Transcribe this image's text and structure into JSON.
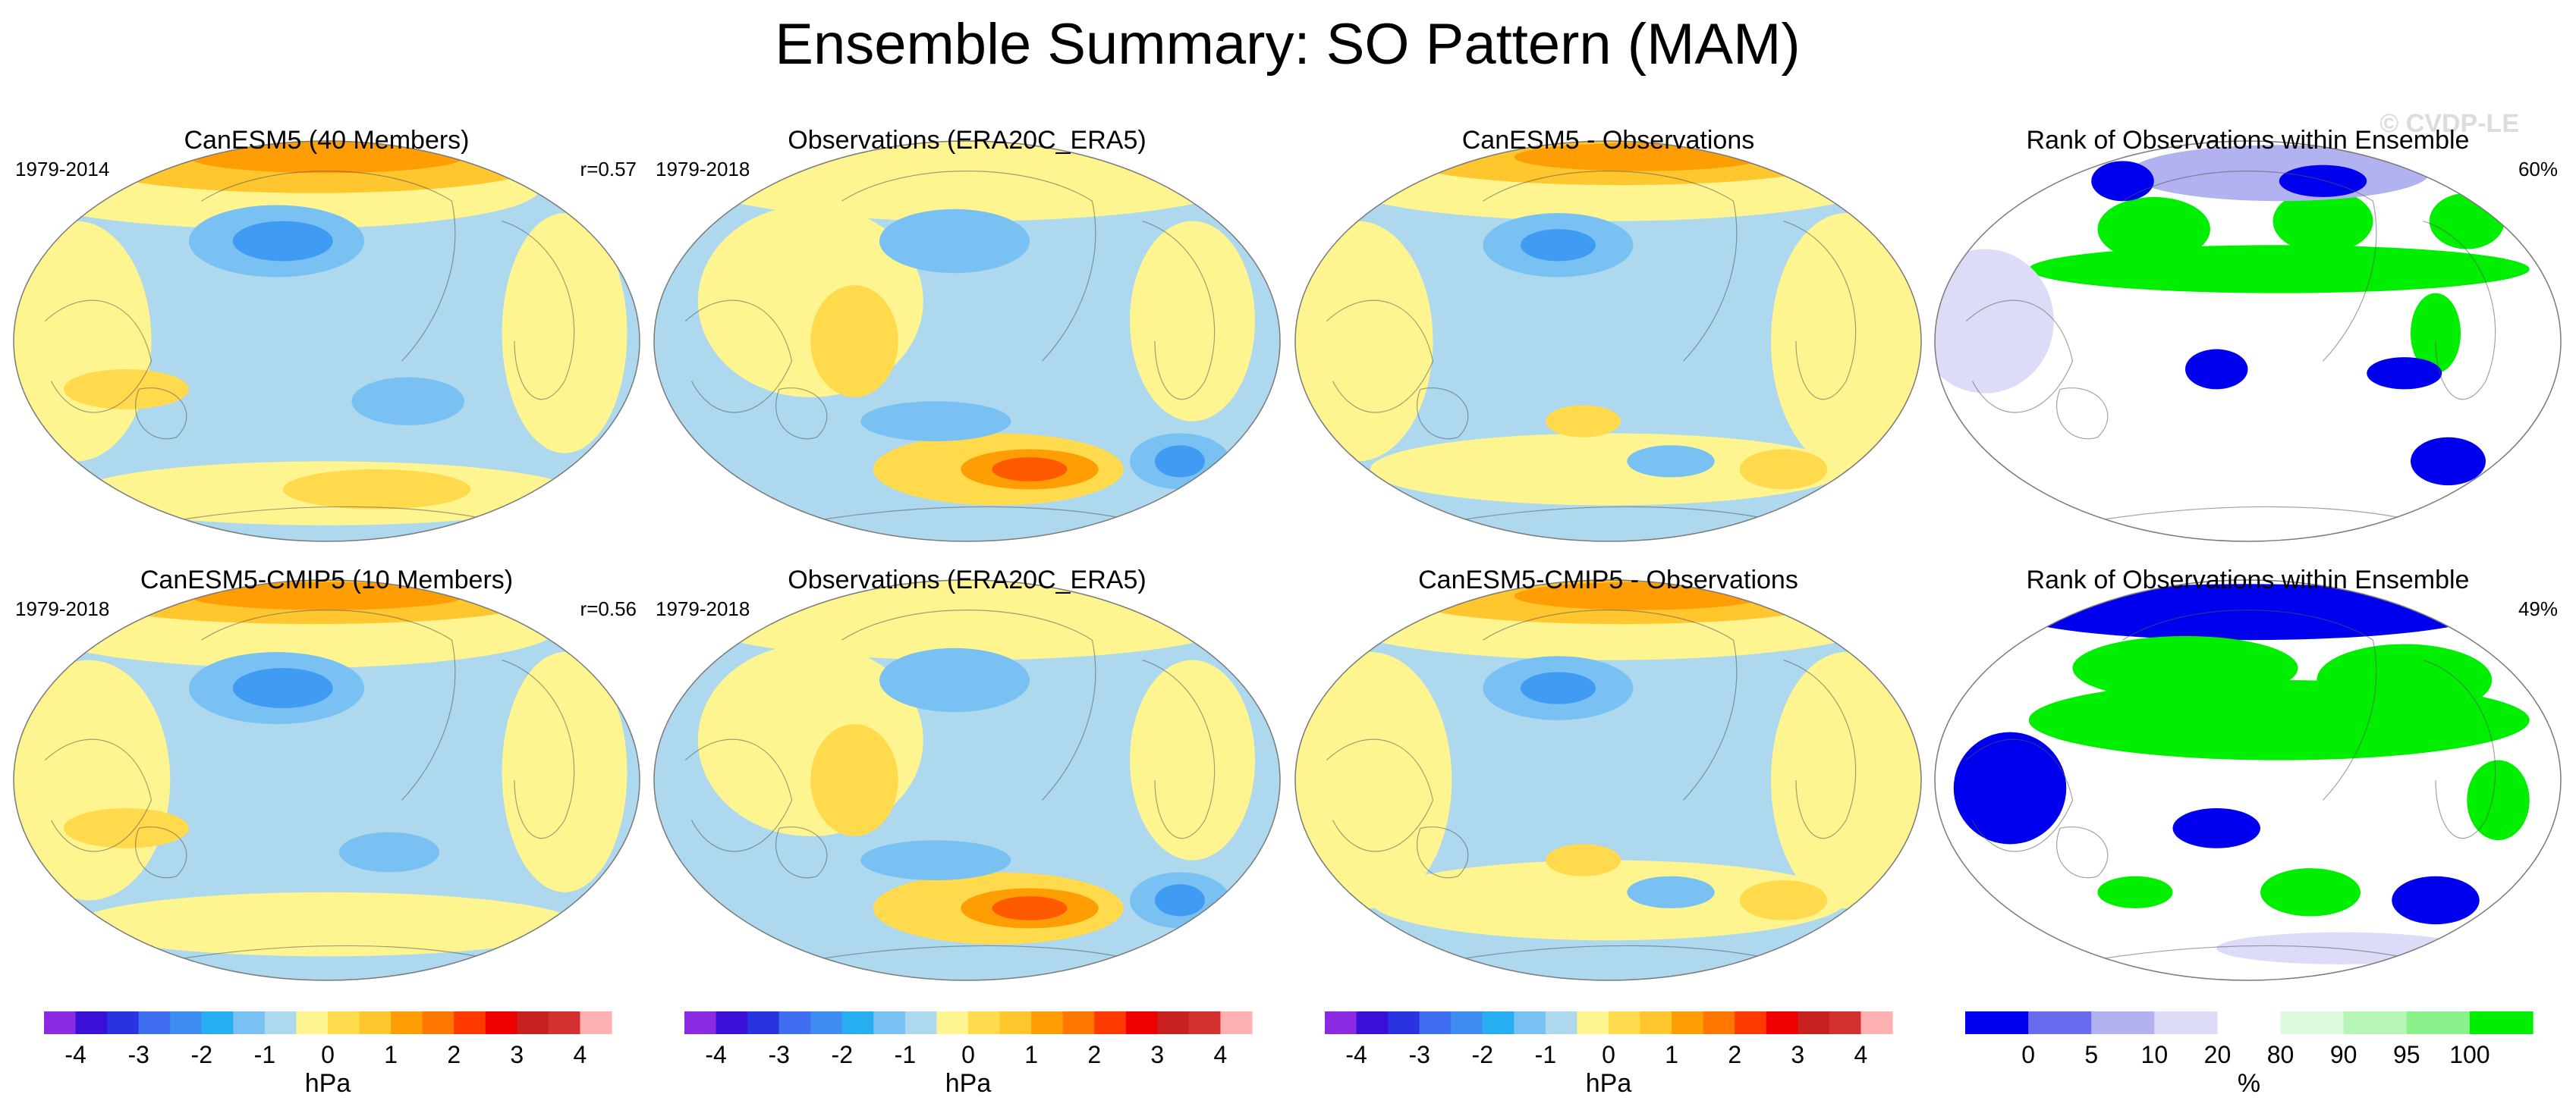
{
  "page": {
    "title": "Ensemble Summary: SO Pattern (MAM)",
    "watermark": "© CVDP-LE"
  },
  "chart_data": {
    "type": "heatmap",
    "projection": "Robinson world map centered on Pacific, continent outlines",
    "panels": [
      {
        "row": 0,
        "col": 0,
        "title": "CanESM5 (40 Members)",
        "left_label": "1979-2014",
        "right_label": "r=0.57",
        "kind": "anomaly",
        "fill": "#add8ee",
        "patches": [
          {
            "x": 0.42,
            "y": 0.12,
            "rx": 0.42,
            "ry": 0.1,
            "c": "#fff590"
          },
          {
            "x": 0.48,
            "y": 0.06,
            "rx": 0.36,
            "ry": 0.07,
            "c": "#ffc62e"
          },
          {
            "x": 0.5,
            "y": 0.04,
            "rx": 0.22,
            "ry": 0.04,
            "c": "#ff9d05"
          },
          {
            "x": 0.1,
            "y": 0.5,
            "rx": 0.12,
            "ry": 0.3,
            "c": "#fff590"
          },
          {
            "x": 0.88,
            "y": 0.48,
            "rx": 0.1,
            "ry": 0.3,
            "c": "#fff590"
          },
          {
            "x": 0.5,
            "y": 0.88,
            "rx": 0.4,
            "ry": 0.08,
            "c": "#fff590"
          },
          {
            "x": 0.58,
            "y": 0.87,
            "rx": 0.15,
            "ry": 0.05,
            "c": "#ffda4d"
          },
          {
            "x": 0.18,
            "y": 0.62,
            "rx": 0.1,
            "ry": 0.05,
            "c": "#ffda4d"
          },
          {
            "x": 0.42,
            "y": 0.25,
            "rx": 0.14,
            "ry": 0.09,
            "c": "#78c1f2"
          },
          {
            "x": 0.43,
            "y": 0.25,
            "rx": 0.08,
            "ry": 0.05,
            "c": "#3f9cf2"
          },
          {
            "x": 0.63,
            "y": 0.65,
            "rx": 0.09,
            "ry": 0.06,
            "c": "#78c1f2"
          }
        ]
      },
      {
        "row": 0,
        "col": 1,
        "title": "Observations (ERA20C_ERA5)",
        "left_label": "1979-2018",
        "right_label": "",
        "kind": "anomaly",
        "fill": "#add8ee",
        "patches": [
          {
            "x": 0.5,
            "y": 0.1,
            "rx": 0.44,
            "ry": 0.1,
            "c": "#fff590"
          },
          {
            "x": 0.25,
            "y": 0.4,
            "rx": 0.18,
            "ry": 0.24,
            "c": "#fff590"
          },
          {
            "x": 0.32,
            "y": 0.5,
            "rx": 0.07,
            "ry": 0.14,
            "c": "#ffda4d"
          },
          {
            "x": 0.86,
            "y": 0.45,
            "rx": 0.1,
            "ry": 0.25,
            "c": "#fff590"
          },
          {
            "x": 0.55,
            "y": 0.82,
            "rx": 0.2,
            "ry": 0.09,
            "c": "#ffda4d"
          },
          {
            "x": 0.6,
            "y": 0.82,
            "rx": 0.11,
            "ry": 0.05,
            "c": "#ff9d05"
          },
          {
            "x": 0.6,
            "y": 0.82,
            "rx": 0.06,
            "ry": 0.03,
            "c": "#ff5a00"
          },
          {
            "x": 0.48,
            "y": 0.25,
            "rx": 0.12,
            "ry": 0.08,
            "c": "#78c1f2"
          },
          {
            "x": 0.84,
            "y": 0.8,
            "rx": 0.08,
            "ry": 0.07,
            "c": "#78c1f2"
          },
          {
            "x": 0.84,
            "y": 0.8,
            "rx": 0.04,
            "ry": 0.04,
            "c": "#3f9cf2"
          },
          {
            "x": 0.45,
            "y": 0.7,
            "rx": 0.12,
            "ry": 0.05,
            "c": "#78c1f2"
          }
        ]
      },
      {
        "row": 0,
        "col": 2,
        "title": "CanESM5 - Observations",
        "left_label": "",
        "right_label": "",
        "kind": "anomaly",
        "fill": "#add8ee",
        "patches": [
          {
            "x": 0.5,
            "y": 0.1,
            "rx": 0.44,
            "ry": 0.1,
            "c": "#fff590"
          },
          {
            "x": 0.52,
            "y": 0.05,
            "rx": 0.34,
            "ry": 0.06,
            "c": "#ffc62e"
          },
          {
            "x": 0.55,
            "y": 0.04,
            "rx": 0.2,
            "ry": 0.035,
            "c": "#ff9d05"
          },
          {
            "x": 0.1,
            "y": 0.5,
            "rx": 0.12,
            "ry": 0.3,
            "c": "#fff590"
          },
          {
            "x": 0.88,
            "y": 0.5,
            "rx": 0.12,
            "ry": 0.32,
            "c": "#fff590"
          },
          {
            "x": 0.5,
            "y": 0.82,
            "rx": 0.38,
            "ry": 0.09,
            "c": "#fff590"
          },
          {
            "x": 0.46,
            "y": 0.7,
            "rx": 0.06,
            "ry": 0.04,
            "c": "#ffda4d"
          },
          {
            "x": 0.78,
            "y": 0.82,
            "rx": 0.07,
            "ry": 0.05,
            "c": "#ffda4d"
          },
          {
            "x": 0.42,
            "y": 0.26,
            "rx": 0.12,
            "ry": 0.08,
            "c": "#78c1f2"
          },
          {
            "x": 0.42,
            "y": 0.26,
            "rx": 0.06,
            "ry": 0.04,
            "c": "#3f9cf2"
          },
          {
            "x": 0.6,
            "y": 0.8,
            "rx": 0.07,
            "ry": 0.04,
            "c": "#78c1f2"
          }
        ]
      },
      {
        "row": 0,
        "col": 3,
        "title": "Rank of Observations within Ensemble",
        "left_label": "",
        "right_label": "60%",
        "kind": "rank",
        "fill": "#ffffff",
        "patches": [
          {
            "x": 0.55,
            "y": 0.32,
            "rx": 0.4,
            "ry": 0.06,
            "c": "#00ee00"
          },
          {
            "x": 0.35,
            "y": 0.22,
            "rx": 0.09,
            "ry": 0.08,
            "c": "#00ee00"
          },
          {
            "x": 0.62,
            "y": 0.2,
            "rx": 0.08,
            "ry": 0.08,
            "c": "#00ee00"
          },
          {
            "x": 0.85,
            "y": 0.2,
            "rx": 0.06,
            "ry": 0.07,
            "c": "#00ee00"
          },
          {
            "x": 0.8,
            "y": 0.48,
            "rx": 0.04,
            "ry": 0.1,
            "c": "#00ee00"
          },
          {
            "x": 0.08,
            "y": 0.45,
            "rx": 0.07,
            "ry": 0.14,
            "c": "#0000ee"
          },
          {
            "x": 0.08,
            "y": 0.45,
            "rx": 0.11,
            "ry": 0.18,
            "c": "#dddcf8"
          },
          {
            "x": 0.45,
            "y": 0.57,
            "rx": 0.05,
            "ry": 0.05,
            "c": "#0000ee"
          },
          {
            "x": 0.82,
            "y": 0.8,
            "rx": 0.06,
            "ry": 0.06,
            "c": "#0000ee"
          },
          {
            "x": 0.55,
            "y": 0.08,
            "rx": 0.24,
            "ry": 0.07,
            "c": "#b3b2f0"
          },
          {
            "x": 0.62,
            "y": 0.1,
            "rx": 0.07,
            "ry": 0.04,
            "c": "#0000ee"
          },
          {
            "x": 0.3,
            "y": 0.1,
            "rx": 0.05,
            "ry": 0.05,
            "c": "#0000ee"
          },
          {
            "x": 0.75,
            "y": 0.58,
            "rx": 0.06,
            "ry": 0.04,
            "c": "#0000ee"
          }
        ]
      },
      {
        "row": 1,
        "col": 0,
        "title": "CanESM5-CMIP5 (10 Members)",
        "left_label": "1979-2018",
        "right_label": "r=0.56",
        "kind": "anomaly",
        "fill": "#add8ee",
        "patches": [
          {
            "x": 0.45,
            "y": 0.12,
            "rx": 0.42,
            "ry": 0.1,
            "c": "#fff590"
          },
          {
            "x": 0.48,
            "y": 0.05,
            "rx": 0.36,
            "ry": 0.06,
            "c": "#ffc62e"
          },
          {
            "x": 0.5,
            "y": 0.04,
            "rx": 0.22,
            "ry": 0.035,
            "c": "#ff9d05"
          },
          {
            "x": 0.12,
            "y": 0.5,
            "rx": 0.13,
            "ry": 0.3,
            "c": "#fff590"
          },
          {
            "x": 0.88,
            "y": 0.48,
            "rx": 0.1,
            "ry": 0.3,
            "c": "#fff590"
          },
          {
            "x": 0.5,
            "y": 0.86,
            "rx": 0.4,
            "ry": 0.08,
            "c": "#fff590"
          },
          {
            "x": 0.18,
            "y": 0.62,
            "rx": 0.1,
            "ry": 0.05,
            "c": "#ffda4d"
          },
          {
            "x": 0.42,
            "y": 0.27,
            "rx": 0.14,
            "ry": 0.09,
            "c": "#78c1f2"
          },
          {
            "x": 0.43,
            "y": 0.27,
            "rx": 0.08,
            "ry": 0.05,
            "c": "#3f9cf2"
          },
          {
            "x": 0.6,
            "y": 0.68,
            "rx": 0.08,
            "ry": 0.05,
            "c": "#78c1f2"
          }
        ]
      },
      {
        "row": 1,
        "col": 1,
        "title": "Observations (ERA20C_ERA5)",
        "left_label": "1979-2018",
        "right_label": "",
        "kind": "anomaly",
        "fill": "#add8ee",
        "patches": [
          {
            "x": 0.5,
            "y": 0.1,
            "rx": 0.44,
            "ry": 0.1,
            "c": "#fff590"
          },
          {
            "x": 0.25,
            "y": 0.4,
            "rx": 0.18,
            "ry": 0.24,
            "c": "#fff590"
          },
          {
            "x": 0.32,
            "y": 0.5,
            "rx": 0.07,
            "ry": 0.14,
            "c": "#ffda4d"
          },
          {
            "x": 0.86,
            "y": 0.45,
            "rx": 0.1,
            "ry": 0.25,
            "c": "#fff590"
          },
          {
            "x": 0.55,
            "y": 0.82,
            "rx": 0.2,
            "ry": 0.09,
            "c": "#ffda4d"
          },
          {
            "x": 0.6,
            "y": 0.82,
            "rx": 0.11,
            "ry": 0.05,
            "c": "#ff9d05"
          },
          {
            "x": 0.6,
            "y": 0.82,
            "rx": 0.06,
            "ry": 0.03,
            "c": "#ff5a00"
          },
          {
            "x": 0.48,
            "y": 0.25,
            "rx": 0.12,
            "ry": 0.08,
            "c": "#78c1f2"
          },
          {
            "x": 0.84,
            "y": 0.8,
            "rx": 0.08,
            "ry": 0.07,
            "c": "#78c1f2"
          },
          {
            "x": 0.84,
            "y": 0.8,
            "rx": 0.04,
            "ry": 0.04,
            "c": "#3f9cf2"
          },
          {
            "x": 0.45,
            "y": 0.7,
            "rx": 0.12,
            "ry": 0.05,
            "c": "#78c1f2"
          }
        ]
      },
      {
        "row": 1,
        "col": 2,
        "title": "CanESM5-CMIP5 - Observations",
        "left_label": "",
        "right_label": "",
        "kind": "anomaly",
        "fill": "#add8ee",
        "patches": [
          {
            "x": 0.5,
            "y": 0.1,
            "rx": 0.44,
            "ry": 0.1,
            "c": "#fff590"
          },
          {
            "x": 0.52,
            "y": 0.05,
            "rx": 0.34,
            "ry": 0.06,
            "c": "#ffc62e"
          },
          {
            "x": 0.55,
            "y": 0.04,
            "rx": 0.2,
            "ry": 0.035,
            "c": "#ff9d05"
          },
          {
            "x": 0.12,
            "y": 0.5,
            "rx": 0.13,
            "ry": 0.32,
            "c": "#fff590"
          },
          {
            "x": 0.88,
            "y": 0.5,
            "rx": 0.12,
            "ry": 0.32,
            "c": "#fff590"
          },
          {
            "x": 0.5,
            "y": 0.8,
            "rx": 0.38,
            "ry": 0.1,
            "c": "#fff590"
          },
          {
            "x": 0.46,
            "y": 0.7,
            "rx": 0.06,
            "ry": 0.04,
            "c": "#ffda4d"
          },
          {
            "x": 0.78,
            "y": 0.8,
            "rx": 0.07,
            "ry": 0.05,
            "c": "#ffda4d"
          },
          {
            "x": 0.42,
            "y": 0.27,
            "rx": 0.12,
            "ry": 0.08,
            "c": "#78c1f2"
          },
          {
            "x": 0.42,
            "y": 0.27,
            "rx": 0.06,
            "ry": 0.04,
            "c": "#3f9cf2"
          },
          {
            "x": 0.6,
            "y": 0.78,
            "rx": 0.07,
            "ry": 0.04,
            "c": "#78c1f2"
          }
        ]
      },
      {
        "row": 1,
        "col": 3,
        "title": "Rank of Observations within Ensemble",
        "left_label": "",
        "right_label": "49%",
        "kind": "rank",
        "fill": "#ffffff",
        "patches": [
          {
            "x": 0.5,
            "y": 0.08,
            "rx": 0.38,
            "ry": 0.07,
            "c": "#0000ee"
          },
          {
            "x": 0.55,
            "y": 0.35,
            "rx": 0.4,
            "ry": 0.1,
            "c": "#00ee00"
          },
          {
            "x": 0.4,
            "y": 0.22,
            "rx": 0.18,
            "ry": 0.08,
            "c": "#00ee00"
          },
          {
            "x": 0.75,
            "y": 0.25,
            "rx": 0.14,
            "ry": 0.09,
            "c": "#00ee00"
          },
          {
            "x": 0.12,
            "y": 0.52,
            "rx": 0.09,
            "ry": 0.14,
            "c": "#0000ee"
          },
          {
            "x": 0.45,
            "y": 0.62,
            "rx": 0.07,
            "ry": 0.05,
            "c": "#0000ee"
          },
          {
            "x": 0.6,
            "y": 0.78,
            "rx": 0.08,
            "ry": 0.06,
            "c": "#00ee00"
          },
          {
            "x": 0.8,
            "y": 0.8,
            "rx": 0.07,
            "ry": 0.06,
            "c": "#0000ee"
          },
          {
            "x": 0.32,
            "y": 0.78,
            "rx": 0.06,
            "ry": 0.04,
            "c": "#00ee00"
          },
          {
            "x": 0.9,
            "y": 0.55,
            "rx": 0.05,
            "ry": 0.1,
            "c": "#00ee00"
          },
          {
            "x": 0.65,
            "y": 0.92,
            "rx": 0.2,
            "ry": 0.04,
            "c": "#dddcf8"
          }
        ]
      }
    ],
    "colorbars": [
      {
        "col": 0,
        "type": "anomaly",
        "unit": "hPa",
        "colors": [
          "#8a2be2",
          "#3a10d8",
          "#2a33e0",
          "#3f6ef0",
          "#3f8cf2",
          "#26aef0",
          "#78c1f2",
          "#add8ee",
          "#fff590",
          "#ffda4d",
          "#ffc62e",
          "#ff9d05",
          "#ff7700",
          "#ff3a00",
          "#ee0000",
          "#c81f1f",
          "#d33030",
          "#ffb0b0"
        ],
        "tick_labels": [
          "-4",
          "-3",
          "-2",
          "-1",
          "0",
          "1",
          "2",
          "3",
          "4"
        ],
        "tick_values": [
          -4,
          -3,
          -2,
          -1,
          0,
          1,
          2,
          3,
          4
        ],
        "vmin": -4.5,
        "vmax": 4.5
      },
      {
        "col": 1,
        "type": "anomaly",
        "unit": "hPa",
        "colors": [
          "#8a2be2",
          "#3a10d8",
          "#2a33e0",
          "#3f6ef0",
          "#3f8cf2",
          "#26aef0",
          "#78c1f2",
          "#add8ee",
          "#fff590",
          "#ffda4d",
          "#ffc62e",
          "#ff9d05",
          "#ff7700",
          "#ff3a00",
          "#ee0000",
          "#c81f1f",
          "#d33030",
          "#ffb0b0"
        ],
        "tick_labels": [
          "-4",
          "-3",
          "-2",
          "-1",
          "0",
          "1",
          "2",
          "3",
          "4"
        ],
        "tick_values": [
          -4,
          -3,
          -2,
          -1,
          0,
          1,
          2,
          3,
          4
        ],
        "vmin": -4.5,
        "vmax": 4.5
      },
      {
        "col": 2,
        "type": "anomaly",
        "unit": "hPa",
        "colors": [
          "#8a2be2",
          "#3a10d8",
          "#2a33e0",
          "#3f6ef0",
          "#3f8cf2",
          "#26aef0",
          "#78c1f2",
          "#add8ee",
          "#fff590",
          "#ffda4d",
          "#ffc62e",
          "#ff9d05",
          "#ff7700",
          "#ff3a00",
          "#ee0000",
          "#c81f1f",
          "#d33030",
          "#ffb0b0"
        ],
        "tick_labels": [
          "-4",
          "-3",
          "-2",
          "-1",
          "0",
          "1",
          "2",
          "3",
          "4"
        ],
        "tick_values": [
          -4,
          -3,
          -2,
          -1,
          0,
          1,
          2,
          3,
          4
        ],
        "vmin": -4.5,
        "vmax": 4.5
      },
      {
        "col": 3,
        "type": "rank",
        "unit": "%",
        "colors": [
          "#0000ee",
          "#6b6bf0",
          "#b3b2f0",
          "#dddcf8",
          "#ffffff",
          "#ddfadd",
          "#b6f5b6",
          "#8af08a",
          "#00ee00"
        ],
        "bounds": [
          -7,
          0,
          5,
          10,
          20,
          80,
          90,
          95,
          100,
          107
        ],
        "tick_labels": [
          "0",
          "5",
          "10",
          "20",
          "80",
          "90",
          "95",
          "100"
        ],
        "tick_values": [
          0,
          5,
          10,
          20,
          80,
          90,
          95,
          100
        ]
      }
    ]
  }
}
